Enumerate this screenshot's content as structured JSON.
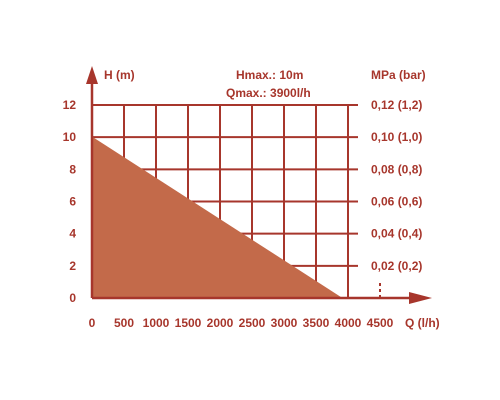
{
  "chart_data": {
    "type": "area",
    "x_axis": {
      "label": "Q (l/h)",
      "ticks": [
        "0",
        "500",
        "1000",
        "1500",
        "2000",
        "2500",
        "3000",
        "3500",
        "4000",
        "4500"
      ],
      "range": [
        0,
        4500
      ]
    },
    "y_axis_left": {
      "label": "H (m)",
      "ticks": [
        "0",
        "2",
        "4",
        "6",
        "8",
        "10",
        "12"
      ],
      "range": [
        0,
        12
      ]
    },
    "y_axis_right": {
      "label": "MPa (bar)",
      "ticks": [
        "0,02 (0,2)",
        "0,04 (0,4)",
        "0,06 (0,6)",
        "0,08 (0,8)",
        "0,10 (1,0)",
        "0,12 (1,2)"
      ],
      "tick_y_values": [
        2,
        4,
        6,
        8,
        10,
        12
      ]
    },
    "annotations": {
      "hmax": "Hmax.: 10m",
      "qmax": "Qmax.: 3900l/h"
    },
    "series": [
      {
        "x": [
          0,
          3900
        ],
        "y": [
          10,
          0
        ]
      }
    ],
    "grid": true,
    "colors": {
      "line": "#a7362c",
      "fill": "#c36a4a"
    }
  }
}
